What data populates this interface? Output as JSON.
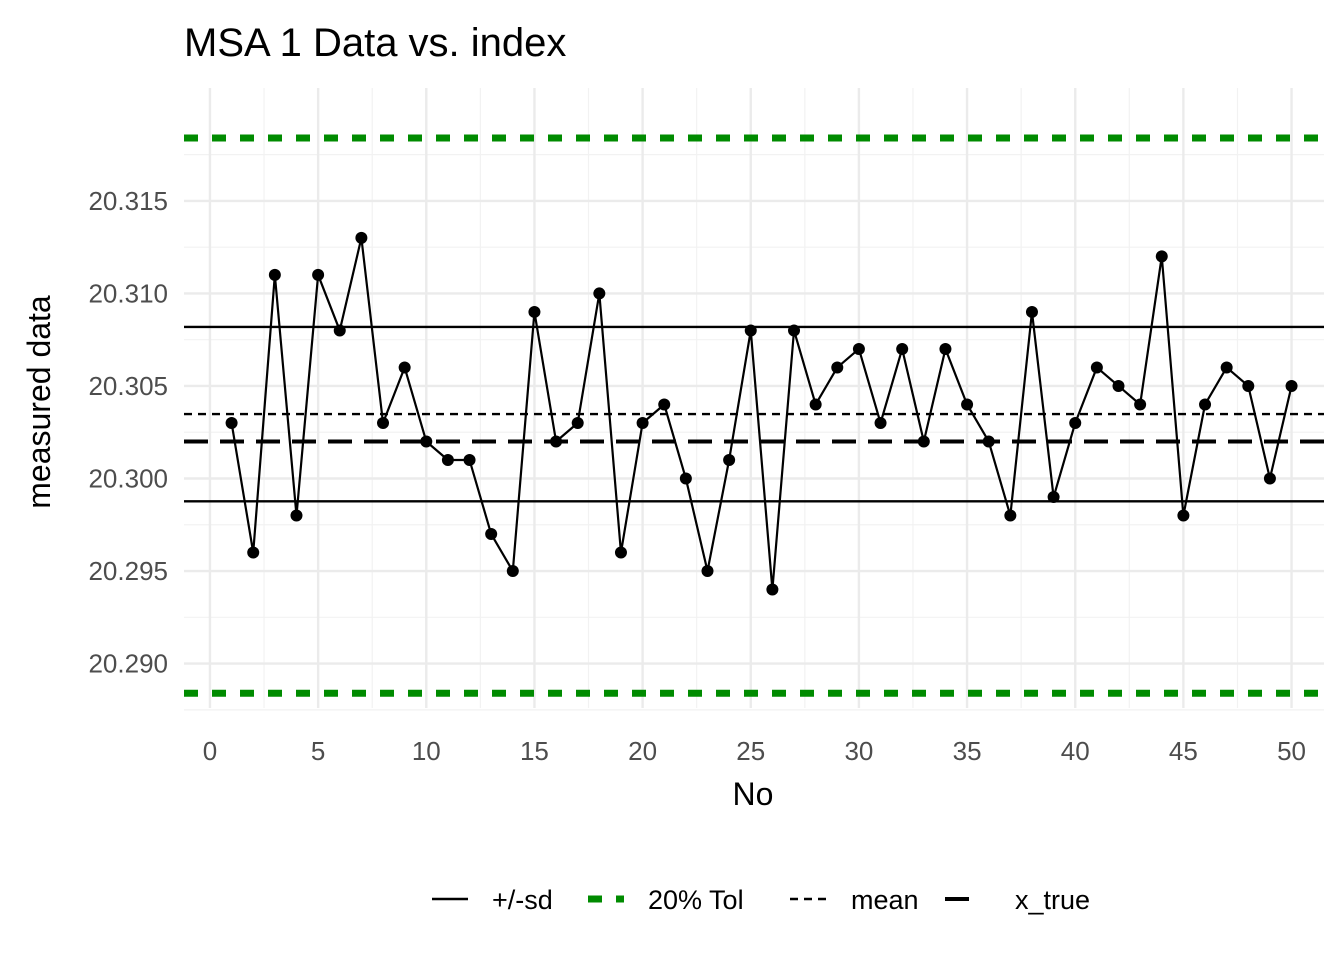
{
  "chart_data": {
    "type": "line",
    "title": "MSA 1 Data vs. index",
    "xlabel": "No",
    "ylabel": "measured data",
    "xlim": [
      -1.2,
      51.5
    ],
    "ylim": [
      20.2876,
      20.3211
    ],
    "x_ticks": [
      0,
      5,
      10,
      15,
      20,
      25,
      30,
      35,
      40,
      45,
      50
    ],
    "x_tick_labels": [
      "0",
      "5",
      "10",
      "15",
      "20",
      "25",
      "30",
      "35",
      "40",
      "45",
      "50"
    ],
    "y_ticks": [
      20.29,
      20.295,
      20.3,
      20.305,
      20.31,
      20.315
    ],
    "y_tick_labels": [
      "20.290",
      "20.295",
      "20.300",
      "20.305",
      "20.310",
      "20.315"
    ],
    "grid": true,
    "legend_position": "bottom",
    "series": [
      {
        "x": [
          1,
          2,
          3,
          4,
          5,
          6,
          7,
          8,
          9,
          10,
          11,
          12,
          13,
          14,
          15,
          16,
          17,
          18,
          19,
          20,
          21,
          22,
          23,
          24,
          25,
          26,
          27,
          28,
          29,
          30,
          31,
          32,
          33,
          34,
          35,
          36,
          37,
          38,
          39,
          40,
          41,
          42,
          43,
          44,
          45,
          46,
          47,
          48,
          49,
          50
        ],
        "values": [
          20.303,
          20.296,
          20.311,
          20.298,
          20.311,
          20.308,
          20.313,
          20.303,
          20.306,
          20.302,
          20.301,
          20.301,
          20.297,
          20.295,
          20.309,
          20.302,
          20.303,
          20.31,
          20.296,
          20.303,
          20.304,
          20.3,
          20.295,
          20.301,
          20.308,
          20.294,
          20.308,
          20.304,
          20.306,
          20.307,
          20.303,
          20.307,
          20.302,
          20.307,
          20.304,
          20.302,
          20.298,
          20.309,
          20.299,
          20.303,
          20.306,
          20.305,
          20.304,
          20.312,
          20.298,
          20.304,
          20.306,
          20.305,
          20.3,
          20.305
        ],
        "color": "#000000"
      }
    ],
    "reference_lines": [
      {
        "name": "+/-sd",
        "y": 20.30819,
        "color": "#000000",
        "style": "solid"
      },
      {
        "name": "+/-sd",
        "y": 20.29877,
        "color": "#000000",
        "style": "solid"
      },
      {
        "name": "20% Tol",
        "y": 20.3184,
        "color": "#008B00",
        "style": "thick-dotted"
      },
      {
        "name": "20% Tol",
        "y": 20.2884,
        "color": "#008B00",
        "style": "thick-dotted"
      },
      {
        "name": "mean",
        "y": 20.30348,
        "color": "#000000",
        "style": "dashed"
      },
      {
        "name": "x_true",
        "y": 20.302,
        "color": "#000000",
        "style": "longdash"
      }
    ],
    "legend": [
      {
        "label": "+/-sd",
        "style": "solid",
        "color": "#000000"
      },
      {
        "label": "20% Tol",
        "style": "thick-dotted",
        "color": "#008B00"
      },
      {
        "label": "mean",
        "style": "dashed",
        "color": "#000000"
      },
      {
        "label": "x_true",
        "style": "longdash",
        "color": "#000000"
      }
    ]
  }
}
